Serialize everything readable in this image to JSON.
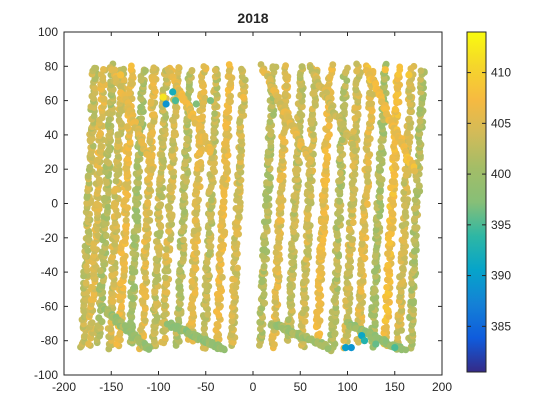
{
  "chart_data": {
    "type": "scatter",
    "title": "2018",
    "xlabel": "",
    "ylabel": "",
    "xlim": [
      -200,
      200
    ],
    "ylim": [
      -100,
      100
    ],
    "xticks": [
      "-200",
      "-150",
      "-100",
      "-50",
      "0",
      "50",
      "100",
      "150",
      "200"
    ],
    "yticks": [
      "100",
      "80",
      "60",
      "40",
      "20",
      "0",
      "-20",
      "-40",
      "-60",
      "-80",
      "-100"
    ],
    "grid": false,
    "colormap": "parula",
    "clim": [
      380.5,
      414
    ],
    "colorbar_ticks": [
      "410",
      "405",
      "400",
      "395",
      "390",
      "385"
    ],
    "tracks": [
      {
        "x_start": -180,
        "x_end": -168,
        "y_start": -85,
        "y_end": 80,
        "value": 403
      },
      {
        "x_start": -172,
        "x_end": -158,
        "y_start": -82,
        "y_end": 78,
        "value": 405
      },
      {
        "x_start": -163,
        "x_end": -148,
        "y_start": -80,
        "y_end": 80,
        "value": 402
      },
      {
        "x_start": -152,
        "x_end": -138,
        "y_start": -84,
        "y_end": 79,
        "value": 404
      },
      {
        "x_start": -142,
        "x_end": -128,
        "y_start": -83,
        "y_end": 80,
        "value": 406
      },
      {
        "x_start": -130,
        "x_end": -116,
        "y_start": -82,
        "y_end": 78,
        "value": 401
      },
      {
        "x_start": -118,
        "x_end": -104,
        "y_start": -85,
        "y_end": 80,
        "value": 405
      },
      {
        "x_start": -105,
        "x_end": -92,
        "y_start": -84,
        "y_end": 79,
        "value": 403
      },
      {
        "x_start": -95,
        "x_end": -80,
        "y_start": -82,
        "y_end": 80,
        "value": 404
      },
      {
        "x_start": -80,
        "x_end": -66,
        "y_start": -84,
        "y_end": 78,
        "value": 402
      },
      {
        "x_start": -66,
        "x_end": -52,
        "y_start": -80,
        "y_end": 80,
        "value": 405
      },
      {
        "x_start": -52,
        "x_end": -38,
        "y_start": -84,
        "y_end": 79,
        "value": 403
      },
      {
        "x_start": -38,
        "x_end": -24,
        "y_start": -82,
        "y_end": 80,
        "value": 406
      },
      {
        "x_start": -22,
        "x_end": -10,
        "y_start": -83,
        "y_end": 78,
        "value": 404
      },
      {
        "x_start": 8,
        "x_end": 22,
        "y_start": -82,
        "y_end": 80,
        "value": 402
      },
      {
        "x_start": 22,
        "x_end": 36,
        "y_start": -84,
        "y_end": 79,
        "value": 405
      },
      {
        "x_start": 38,
        "x_end": 52,
        "y_start": -80,
        "y_end": 80,
        "value": 403
      },
      {
        "x_start": 52,
        "x_end": 66,
        "y_start": -84,
        "y_end": 78,
        "value": 404
      },
      {
        "x_start": 68,
        "x_end": 82,
        "y_start": -82,
        "y_end": 80,
        "value": 406
      },
      {
        "x_start": 84,
        "x_end": 98,
        "y_start": -85,
        "y_end": 79,
        "value": 402
      },
      {
        "x_start": 98,
        "x_end": 112,
        "y_start": -83,
        "y_end": 80,
        "value": 404
      },
      {
        "x_start": 112,
        "x_end": 126,
        "y_start": -82,
        "y_end": 78,
        "value": 405
      },
      {
        "x_start": 126,
        "x_end": 140,
        "y_start": -84,
        "y_end": 80,
        "value": 401
      },
      {
        "x_start": 140,
        "x_end": 154,
        "y_start": -82,
        "y_end": 79,
        "value": 407
      },
      {
        "x_start": 154,
        "x_end": 168,
        "y_start": -84,
        "y_end": 80,
        "value": 404
      },
      {
        "x_start": 166,
        "x_end": 180,
        "y_start": -85,
        "y_end": 78,
        "value": 402
      }
    ],
    "arcs": [
      {
        "x_start": -150,
        "x_end": -105,
        "y_start": 80,
        "y_end": 20,
        "value": 405
      },
      {
        "x_start": -90,
        "x_end": -45,
        "y_start": 80,
        "y_end": 30,
        "value": 406
      },
      {
        "x_start": 10,
        "x_end": 60,
        "y_start": 80,
        "y_end": 25,
        "value": 405
      },
      {
        "x_start": 60,
        "x_end": 110,
        "y_start": 80,
        "y_end": 30,
        "value": 404
      },
      {
        "x_start": 120,
        "x_end": 170,
        "y_start": 80,
        "y_end": 20,
        "value": 407
      },
      {
        "x_start": -160,
        "x_end": -110,
        "y_start": -60,
        "y_end": -85,
        "value": 400
      },
      {
        "x_start": -90,
        "x_end": -30,
        "y_start": -70,
        "y_end": -85,
        "value": 399
      },
      {
        "x_start": 20,
        "x_end": 80,
        "y_start": -70,
        "y_end": -84,
        "value": 400
      },
      {
        "x_start": 100,
        "x_end": 160,
        "y_start": -70,
        "y_end": -86,
        "value": 399
      }
    ],
    "highlights": [
      {
        "x": -95,
        "y": 62,
        "value": 412
      },
      {
        "x": -92,
        "y": 58,
        "value": 389
      },
      {
        "x": -85,
        "y": 65,
        "value": 392
      },
      {
        "x": -82,
        "y": 60,
        "value": 395
      },
      {
        "x": -60,
        "y": 58,
        "value": 397
      },
      {
        "x": -45,
        "y": 60,
        "value": 397
      },
      {
        "x": -75,
        "y": 62,
        "value": 407
      },
      {
        "x": 98,
        "y": -84,
        "value": 390
      },
      {
        "x": 104,
        "y": -84,
        "value": 389
      },
      {
        "x": 115,
        "y": -77,
        "value": 391
      },
      {
        "x": 118,
        "y": -80,
        "value": 393
      },
      {
        "x": 130,
        "y": -82,
        "value": 396
      },
      {
        "x": 150,
        "y": -84,
        "value": 395
      },
      {
        "x": 165,
        "y": 75,
        "value": 409
      },
      {
        "x": 140,
        "y": 78,
        "value": 408
      },
      {
        "x": -140,
        "y": 75,
        "value": 408
      },
      {
        "x": -10,
        "y": 62,
        "value": 407
      }
    ]
  }
}
